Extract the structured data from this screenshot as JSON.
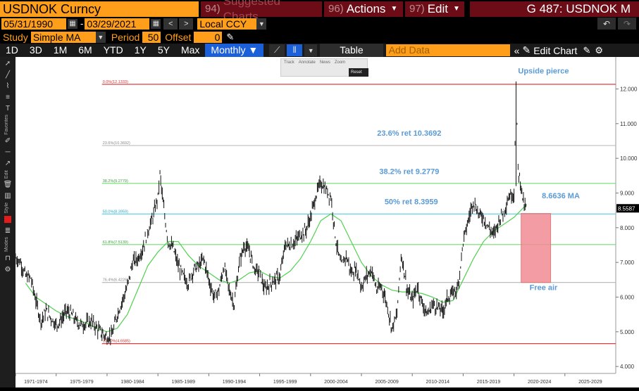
{
  "header": {
    "title": "USDNOK Curncy",
    "suggested_num": "94)",
    "suggested_label": "Suggested Charts",
    "actions_num": "96)",
    "actions_label": "Actions",
    "edit_num": "97)",
    "edit_label": "Edit",
    "ticker_code": "G 487: USDNOK M"
  },
  "controls": {
    "start_date": "05/31/1990",
    "date_sep": "-",
    "end_date": "03/29/2021",
    "currency": "Local CCY",
    "study_label": "Study",
    "study_value": "Simple MA",
    "period_label": "Period",
    "period_value": "50",
    "offset_label": "Offset",
    "offset_value": "0"
  },
  "periods": {
    "items": [
      "1D",
      "3D",
      "1M",
      "6M",
      "YTD",
      "1Y",
      "5Y",
      "Max"
    ],
    "frequency": "Monthly ▼",
    "table_label": "Table",
    "add_data_placeholder": "Add Data",
    "edit_chart_label": "Edit Chart"
  },
  "minitoolbar": {
    "track": "Track",
    "annotate": "Annotate",
    "news": "News",
    "zoom": "Zoom",
    "reset": "Reset"
  },
  "sidebar": {
    "favorites": "Favorites",
    "edit": "Edit",
    "style": "Style",
    "modes": "Modes"
  },
  "colors": {
    "price": "#000000",
    "ma": "#4fd14f",
    "fib_top": "#e33d3d",
    "fib_mid": "#7fe07f",
    "fib_50": "#63d1e8",
    "fib_gray": "#bdbdbd",
    "annotation_text": "#5b9bd5",
    "free_air_box": "#f28b93",
    "orange": "#ff9e1b",
    "maroon": "#6b0c17"
  },
  "chart_data": {
    "type": "line",
    "series_name": "USDNOK",
    "ma_name": "50 SMA",
    "xlim": [
      1971,
      2030
    ],
    "ylim": [
      3.8,
      12.8
    ],
    "y_ticks": [
      "12.000",
      "11.000",
      "10.000",
      "9.000",
      "8.000",
      "7.000",
      "6.000",
      "5.000",
      "4.000"
    ],
    "x_ticks": [
      "1971-1974",
      "1975-1979",
      "1980-1984",
      "1985-1989",
      "1990-1994",
      "1995-1999",
      "2000-2004",
      "2005-2009",
      "2010-2014",
      "2015-2019",
      "2020-2024",
      "2025-2029"
    ],
    "current_price_label": "8.5587",
    "current_price": 8.5587,
    "fib_levels": [
      {
        "label": "0.0%(12.1333)",
        "value": 12.1333,
        "color": "#e33d3d"
      },
      {
        "label": "23.6%(10.3692)",
        "value": 10.3692,
        "color": "#bdbdbd"
      },
      {
        "label": "38.2%(9.2779)",
        "value": 9.2779,
        "color": "#7fe07f"
      },
      {
        "label": "50.0%(8.3959)",
        "value": 8.3959,
        "color": "#63d1e8"
      },
      {
        "label": "61.8%(7.5139)",
        "value": 7.5139,
        "color": "#7fe07f"
      },
      {
        "label": "76.4%(6.4226)",
        "value": 6.4226,
        "color": "#bdbdbd"
      },
      {
        "label": "100.0%(4.6585)",
        "value": 4.6585,
        "color": "#e33d3d"
      }
    ],
    "annotations": [
      {
        "text": "Upside pierce",
        "x": 2022.9,
        "y": 12.45
      },
      {
        "text": "23.6% ret 10.3692",
        "x": 2009.7,
        "y": 10.65
      },
      {
        "text": "38.2% ret 9.2779",
        "x": 2009.7,
        "y": 9.55
      },
      {
        "text": "50% ret 8.3959",
        "x": 2009.9,
        "y": 8.68
      },
      {
        "text": "8.6636 MA",
        "x": 2024.6,
        "y": 8.85
      },
      {
        "text": "Free air",
        "x": 2022.9,
        "y": 6.2
      }
    ],
    "free_air_box": {
      "x0": 2020.7,
      "x1": 2023.6,
      "y0": 6.42,
      "y1": 8.41
    },
    "price": [
      [
        1971.0,
        7.14
      ],
      [
        1971.5,
        7.0
      ],
      [
        1972.0,
        6.6
      ],
      [
        1972.5,
        6.55
      ],
      [
        1973.0,
        5.9
      ],
      [
        1973.5,
        5.3
      ],
      [
        1974.0,
        5.6
      ],
      [
        1974.5,
        5.4
      ],
      [
        1975.0,
        5.2
      ],
      [
        1975.5,
        5.35
      ],
      [
        1976.0,
        5.6
      ],
      [
        1976.5,
        5.5
      ],
      [
        1977.0,
        5.3
      ],
      [
        1977.5,
        5.2
      ],
      [
        1978.0,
        5.25
      ],
      [
        1978.5,
        5.3
      ],
      [
        1979.0,
        5.1
      ],
      [
        1979.5,
        4.95
      ],
      [
        1980.0,
        4.85
      ],
      [
        1980.5,
        4.9
      ],
      [
        1981.0,
        5.5
      ],
      [
        1981.5,
        5.9
      ],
      [
        1982.0,
        6.3
      ],
      [
        1982.5,
        7.0
      ],
      [
        1983.0,
        7.1
      ],
      [
        1983.5,
        7.4
      ],
      [
        1984.0,
        7.9
      ],
      [
        1984.5,
        8.3
      ],
      [
        1985.0,
        8.9
      ],
      [
        1985.2,
        9.55
      ],
      [
        1985.5,
        8.7
      ],
      [
        1986.0,
        7.6
      ],
      [
        1986.5,
        7.4
      ],
      [
        1987.0,
        6.9
      ],
      [
        1987.5,
        6.6
      ],
      [
        1988.0,
        6.4
      ],
      [
        1988.5,
        6.8
      ],
      [
        1989.0,
        6.9
      ],
      [
        1989.5,
        7.1
      ],
      [
        1990.0,
        6.5
      ],
      [
        1990.5,
        6.0
      ],
      [
        1991.0,
        6.2
      ],
      [
        1991.5,
        6.9
      ],
      [
        1992.0,
        6.2
      ],
      [
        1992.5,
        5.8
      ],
      [
        1993.0,
        7.0
      ],
      [
        1993.5,
        7.5
      ],
      [
        1994.0,
        7.3
      ],
      [
        1994.5,
        6.8
      ],
      [
        1995.0,
        6.7
      ],
      [
        1995.5,
        6.2
      ],
      [
        1996.0,
        6.4
      ],
      [
        1996.5,
        6.5
      ],
      [
        1997.0,
        6.6
      ],
      [
        1997.5,
        7.5
      ],
      [
        1998.0,
        7.5
      ],
      [
        1998.5,
        7.6
      ],
      [
        1999.0,
        7.8
      ],
      [
        1999.5,
        7.9
      ],
      [
        2000.0,
        8.3
      ],
      [
        2000.5,
        8.9
      ],
      [
        2001.0,
        9.3
      ],
      [
        2001.5,
        9.1
      ],
      [
        2002.0,
        8.9
      ],
      [
        2002.5,
        7.6
      ],
      [
        2003.0,
        6.9
      ],
      [
        2003.5,
        7.2
      ],
      [
        2004.0,
        6.7
      ],
      [
        2004.5,
        6.8
      ],
      [
        2005.0,
        6.3
      ],
      [
        2005.5,
        6.6
      ],
      [
        2006.0,
        6.8
      ],
      [
        2006.5,
        6.2
      ],
      [
        2007.0,
        6.3
      ],
      [
        2007.5,
        5.8
      ],
      [
        2008.0,
        5.1
      ],
      [
        2008.5,
        5.5
      ],
      [
        2008.9,
        7.2
      ],
      [
        2009.2,
        6.8
      ],
      [
        2009.5,
        6.2
      ],
      [
        2010.0,
        5.9
      ],
      [
        2010.5,
        6.3
      ],
      [
        2011.0,
        5.8
      ],
      [
        2011.5,
        5.5
      ],
      [
        2012.0,
        5.8
      ],
      [
        2012.5,
        5.7
      ],
      [
        2013.0,
        5.6
      ],
      [
        2013.5,
        6.0
      ],
      [
        2014.0,
        6.1
      ],
      [
        2014.5,
        6.3
      ],
      [
        2015.0,
        7.6
      ],
      [
        2015.5,
        8.2
      ],
      [
        2016.0,
        8.8
      ],
      [
        2016.5,
        8.4
      ],
      [
        2017.0,
        8.3
      ],
      [
        2017.5,
        8.0
      ],
      [
        2018.0,
        7.8
      ],
      [
        2018.5,
        8.2
      ],
      [
        2019.0,
        8.5
      ],
      [
        2019.5,
        8.9
      ],
      [
        2020.0,
        9.0
      ],
      [
        2020.2,
        12.1
      ],
      [
        2020.4,
        9.7
      ],
      [
        2020.7,
        9.2
      ],
      [
        2021.0,
        8.6
      ],
      [
        2021.25,
        8.56
      ]
    ],
    "ma": [
      [
        1972.0,
        6.4
      ],
      [
        1973.0,
        6.0
      ],
      [
        1974.0,
        5.8
      ],
      [
        1975.0,
        5.6
      ],
      [
        1976.0,
        5.45
      ],
      [
        1977.0,
        5.35
      ],
      [
        1978.0,
        5.25
      ],
      [
        1979.0,
        5.1
      ],
      [
        1980.0,
        5.0
      ],
      [
        1981.0,
        5.1
      ],
      [
        1982.0,
        5.5
      ],
      [
        1983.0,
        6.2
      ],
      [
        1984.0,
        6.9
      ],
      [
        1985.0,
        7.3
      ],
      [
        1986.0,
        7.6
      ],
      [
        1987.0,
        7.6
      ],
      [
        1988.0,
        7.2
      ],
      [
        1989.0,
        6.9
      ],
      [
        1990.0,
        6.7
      ],
      [
        1991.0,
        6.5
      ],
      [
        1992.0,
        6.4
      ],
      [
        1993.0,
        6.5
      ],
      [
        1994.0,
        6.7
      ],
      [
        1995.0,
        6.75
      ],
      [
        1996.0,
        6.6
      ],
      [
        1997.0,
        6.55
      ],
      [
        1998.0,
        6.75
      ],
      [
        1999.0,
        7.1
      ],
      [
        2000.0,
        7.6
      ],
      [
        2001.0,
        8.2
      ],
      [
        2002.0,
        8.4
      ],
      [
        2003.0,
        8.2
      ],
      [
        2004.0,
        7.6
      ],
      [
        2005.0,
        7.0
      ],
      [
        2006.0,
        6.6
      ],
      [
        2007.0,
        6.35
      ],
      [
        2008.0,
        6.2
      ],
      [
        2009.0,
        6.15
      ],
      [
        2010.0,
        6.15
      ],
      [
        2011.0,
        6.1
      ],
      [
        2012.0,
        6.0
      ],
      [
        2013.0,
        5.85
      ],
      [
        2014.0,
        5.9
      ],
      [
        2015.0,
        6.5
      ],
      [
        2016.0,
        7.1
      ],
      [
        2017.0,
        7.6
      ],
      [
        2018.0,
        7.9
      ],
      [
        2019.0,
        8.1
      ],
      [
        2020.0,
        8.3
      ],
      [
        2021.0,
        8.6
      ],
      [
        2021.25,
        8.66
      ]
    ]
  }
}
